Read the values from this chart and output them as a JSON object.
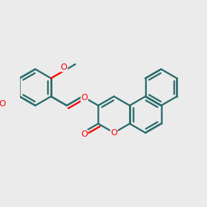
{
  "background_color": "#ebebeb",
  "bond_color": "#2d6e6e",
  "oxygen_color": "#ff0000",
  "bond_width": 1.8,
  "figsize": [
    3.0,
    3.0
  ],
  "dpi": 100,
  "xlim": [
    0.0,
    3.0
  ],
  "ylim": [
    0.2,
    3.2
  ]
}
